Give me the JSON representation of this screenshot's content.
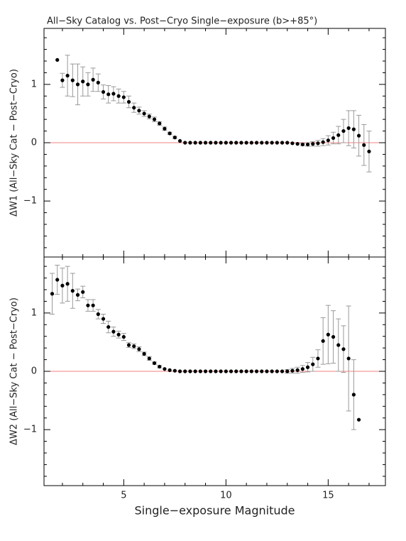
{
  "chart_data": [
    {
      "type": "scatter",
      "title": "All−Sky Catalog vs. Post−Cryo Single−exposure (b>+85°)",
      "y_label": "ΔW1 (All−Sky Cat − Post−Cryo)",
      "x": [
        1.75,
        2,
        2.25,
        2.5,
        2.75,
        3,
        3.25,
        3.5,
        3.75,
        4,
        4.25,
        4.5,
        4.75,
        5,
        5.25,
        5.5,
        5.75,
        6,
        6.25,
        6.5,
        6.75,
        7,
        7.25,
        7.5,
        7.75,
        8,
        8.25,
        8.5,
        8.75,
        9,
        9.25,
        9.5,
        9.75,
        10,
        10.25,
        10.5,
        10.75,
        11,
        11.25,
        11.5,
        11.75,
        12,
        12.25,
        12.5,
        12.75,
        13,
        13.25,
        13.5,
        13.75,
        14,
        14.25,
        14.5,
        14.75,
        15,
        15.25,
        15.5,
        15.75,
        16,
        16.25,
        16.5,
        16.75,
        17
      ],
      "values": [
        1.42,
        1.07,
        1.15,
        1.07,
        1.0,
        1.05,
        1.0,
        1.08,
        1.03,
        0.87,
        0.83,
        0.84,
        0.8,
        0.78,
        0.7,
        0.6,
        0.55,
        0.5,
        0.45,
        0.4,
        0.33,
        0.24,
        0.16,
        0.09,
        0.03,
        0,
        0,
        0,
        0,
        0,
        0,
        0,
        0,
        0,
        0,
        0,
        0,
        0,
        0,
        0,
        0,
        0,
        0,
        0,
        0,
        0,
        -0.01,
        -0.02,
        -0.03,
        -0.03,
        -0.02,
        -0.01,
        0.01,
        0.04,
        0.08,
        0.13,
        0.2,
        0.25,
        0.23,
        0.12,
        -0.04,
        -0.15
      ],
      "errors": [
        null,
        0.12,
        0.35,
        0.28,
        0.35,
        0.25,
        0.2,
        0.2,
        0.15,
        0.12,
        0.15,
        0.12,
        0.12,
        0.1,
        0.1,
        0.08,
        0.06,
        0.05,
        0.04,
        0.04,
        0.03,
        0.03,
        0.02,
        0.02,
        null,
        null,
        null,
        null,
        null,
        null,
        null,
        null,
        null,
        null,
        null,
        null,
        null,
        null,
        null,
        null,
        null,
        null,
        null,
        null,
        null,
        null,
        null,
        null,
        0.02,
        0.03,
        0.04,
        0.05,
        0.06,
        0.08,
        0.1,
        0.15,
        0.2,
        0.3,
        0.32,
        0.35,
        0.35,
        0.35
      ],
      "color": "#000000",
      "error_color": "#9a9a9a",
      "hline": 0,
      "hline_color": "#f08080",
      "xlim": [
        1.1,
        17.8
      ],
      "xticks": [
        5,
        10,
        15
      ],
      "xminorticks": [
        2,
        3,
        4,
        6,
        7,
        8,
        9,
        11,
        12,
        13,
        14,
        16,
        17
      ],
      "show_xtick_labels": false,
      "ylim": [
        -1.96,
        1.96
      ],
      "yticks": [
        {
          "value": -1,
          "label": "−1"
        },
        0,
        1
      ],
      "yminorticks": [
        -1.8,
        -1.6,
        -1.4,
        -1.2,
        -0.8,
        -0.6,
        -0.4,
        -0.2,
        0.2,
        0.4,
        0.6,
        0.8,
        1.2,
        1.4,
        1.6,
        1.8
      ]
    },
    {
      "type": "scatter",
      "y_label": "ΔW2 (All−Sky Cat − Post−Cryo)",
      "x_label": "Single−exposure Magnitude",
      "x": [
        1.5,
        1.75,
        2,
        2.25,
        2.5,
        2.75,
        3,
        3.25,
        3.5,
        3.75,
        4,
        4.25,
        4.5,
        4.75,
        5,
        5.25,
        5.5,
        5.75,
        6,
        6.25,
        6.5,
        6.75,
        7,
        7.25,
        7.5,
        7.75,
        8,
        8.25,
        8.5,
        8.75,
        9,
        9.25,
        9.5,
        9.75,
        10,
        10.25,
        10.5,
        10.75,
        11,
        11.25,
        11.5,
        11.75,
        12,
        12.25,
        12.5,
        12.75,
        13,
        13.25,
        13.5,
        13.75,
        14,
        14.25,
        14.5,
        14.75,
        15,
        15.25,
        15.5,
        15.75,
        16,
        16.25,
        16.5
      ],
      "values": [
        1.33,
        1.57,
        1.47,
        1.5,
        1.38,
        1.31,
        1.36,
        1.13,
        1.13,
        0.98,
        0.9,
        0.76,
        0.68,
        0.63,
        0.59,
        0.45,
        0.43,
        0.38,
        0.3,
        0.22,
        0.14,
        0.08,
        0.04,
        0.02,
        0.01,
        0,
        0,
        0,
        0,
        0,
        0,
        0,
        0,
        0,
        0,
        0,
        0,
        0,
        0,
        0,
        0,
        0,
        0,
        0,
        0,
        0,
        0,
        0.01,
        0.02,
        0.04,
        0.07,
        0.12,
        0.22,
        0.52,
        0.63,
        0.59,
        0.45,
        0.38,
        0.22,
        -0.4,
        -0.83
      ],
      "errors": [
        0.35,
        0.25,
        0.3,
        0.3,
        0.3,
        0.1,
        0.1,
        0.1,
        0.1,
        0.08,
        0.08,
        0.1,
        0.08,
        0.06,
        0.06,
        0.04,
        0.04,
        0.04,
        0.03,
        0.03,
        0.02,
        0.02,
        null,
        null,
        null,
        null,
        null,
        null,
        null,
        null,
        null,
        null,
        null,
        null,
        null,
        null,
        null,
        null,
        null,
        null,
        null,
        null,
        null,
        null,
        null,
        null,
        0.03,
        0.04,
        0.05,
        0.06,
        0.08,
        0.12,
        0.15,
        0.4,
        0.5,
        0.45,
        0.45,
        0.4,
        0.9,
        0.6,
        null
      ],
      "color": "#000000",
      "error_color": "#9a9a9a",
      "hline": 0,
      "hline_color": "#f08080",
      "xlim": [
        1.1,
        17.8
      ],
      "xticks": [
        5,
        10,
        15
      ],
      "xminorticks": [
        2,
        3,
        4,
        6,
        7,
        8,
        9,
        11,
        12,
        13,
        14,
        16,
        17
      ],
      "show_xtick_labels": true,
      "ylim": [
        -1.96,
        1.96
      ],
      "yticks": [
        {
          "value": -1,
          "label": "−1"
        },
        0,
        1
      ],
      "yminorticks": [
        -1.8,
        -1.6,
        -1.4,
        -1.2,
        -0.8,
        -0.6,
        -0.4,
        -0.2,
        0.2,
        0.4,
        0.6,
        0.8,
        1.2,
        1.4,
        1.6,
        1.8
      ]
    }
  ]
}
